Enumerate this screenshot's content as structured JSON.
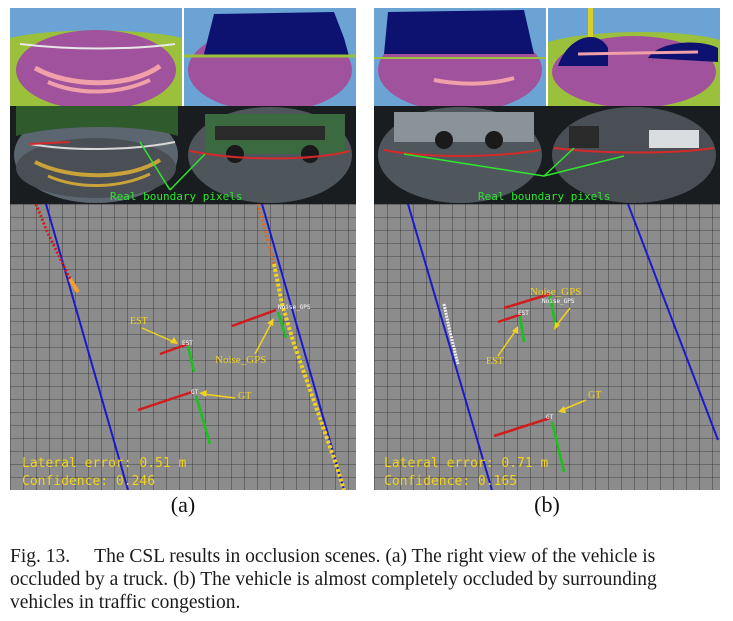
{
  "panels": [
    {
      "id": "a",
      "sublabel": "(a)",
      "boundary_label": "Real boundary pixels",
      "lateral_error": "Lateral error: 0.51 m",
      "confidence": "Confidence: 0.246",
      "labels": {
        "est": "EST",
        "gt": "GT",
        "noise": "Noise_GPS"
      },
      "small_labels": {
        "est": "EST",
        "gt": "GT",
        "noise": "Noise_GPS"
      }
    },
    {
      "id": "b",
      "sublabel": "(b)",
      "boundary_label": "Real boundary pixels",
      "lateral_error": "Lateral error: 0.71 m",
      "confidence": "Confidence: 0.165",
      "labels": {
        "est": "EST",
        "gt": "GT",
        "noise": "Noise_GPS"
      },
      "small_labels": {
        "est": "EST",
        "gt": "GT",
        "noise": "Noise_GPS"
      }
    }
  ],
  "caption": {
    "label": "Fig. 13.",
    "text": "The CSL results in occlusion scenes. (a) The right view of the vehicle is occluded by a truck. (b) The vehicle is almost completely occluded by surrounding vehicles in traffic congestion."
  },
  "colors": {
    "seg_purple": "#a0529c",
    "seg_sky": "#6aa3d4",
    "seg_vegetation": "#9bc03c",
    "seg_vehicle": "#0d1170",
    "seg_lane": "#f0a0a8",
    "map_gray": "#8c8c8c",
    "lane_blue": "#1a1acc",
    "gt_green": "#19c219",
    "est_red": "#d01c1c",
    "annotation_yellow": "#f2d21a",
    "boundary_green": "#2ee62e"
  }
}
